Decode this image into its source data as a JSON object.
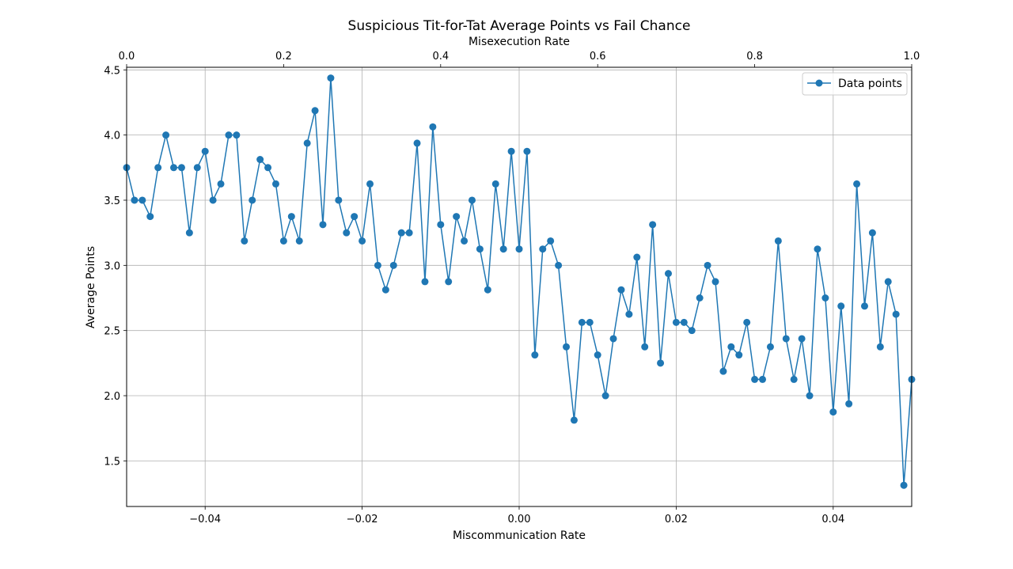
{
  "chart_data": {
    "type": "line",
    "title": "Suspicious Tit-for-Tat Average Points vs Fail Chance",
    "xlabel": "Miscommunication Rate",
    "ylabel": "Average Points",
    "top_xlabel": "Misexecution Rate",
    "xlim": [
      -0.05,
      0.05
    ],
    "ylim": [
      1.15,
      4.52
    ],
    "top_xlim": [
      0.0,
      1.0
    ],
    "x_ticks": [
      -0.04,
      -0.02,
      0.0,
      0.02,
      0.04
    ],
    "x_tick_labels": [
      "−0.04",
      "−0.02",
      "0.00",
      "0.02",
      "0.04"
    ],
    "y_ticks": [
      1.5,
      2.0,
      2.5,
      3.0,
      3.5,
      4.0,
      4.5
    ],
    "y_tick_labels": [
      "1.5",
      "2.0",
      "2.5",
      "3.0",
      "3.5",
      "4.0",
      "4.5"
    ],
    "top_x_ticks": [
      0.0,
      0.2,
      0.4,
      0.6,
      0.8,
      1.0
    ],
    "top_x_tick_labels": [
      "0.0",
      "0.2",
      "0.4",
      "0.6",
      "0.8",
      "1.0"
    ],
    "grid": true,
    "legend_position": "top-right",
    "series": [
      {
        "name": "Data points",
        "color": "#1f77b4",
        "x": [
          -0.05,
          -0.049,
          -0.048,
          -0.047,
          -0.046,
          -0.045,
          -0.044,
          -0.043,
          -0.042,
          -0.041,
          -0.04,
          -0.039,
          -0.038,
          -0.037,
          -0.036,
          -0.035,
          -0.034,
          -0.033,
          -0.032,
          -0.031,
          -0.03,
          -0.029,
          -0.028,
          -0.027,
          -0.026,
          -0.025,
          -0.024,
          -0.023,
          -0.022,
          -0.021,
          -0.02,
          -0.019,
          -0.018,
          -0.017,
          -0.016,
          -0.015,
          -0.014,
          -0.013,
          -0.012,
          -0.011,
          -0.01,
          -0.009,
          -0.008,
          -0.007,
          -0.006,
          -0.005,
          -0.004,
          -0.003,
          -0.002,
          -0.001,
          0.0,
          0.001,
          0.002,
          0.003,
          0.004,
          0.005,
          0.006,
          0.007,
          0.008,
          0.009,
          0.01,
          0.011,
          0.012,
          0.013,
          0.014,
          0.015,
          0.016,
          0.017,
          0.018,
          0.019,
          0.02,
          0.021,
          0.022,
          0.023,
          0.024,
          0.025,
          0.026,
          0.027,
          0.028,
          0.029,
          0.03,
          0.031,
          0.032,
          0.033,
          0.034,
          0.035,
          0.036,
          0.037,
          0.038,
          0.039,
          0.04,
          0.041,
          0.042,
          0.043,
          0.044,
          0.045,
          0.046,
          0.047,
          0.048,
          0.049,
          0.05
        ],
        "y": [
          3.75,
          3.5,
          3.5,
          3.375,
          3.75,
          4.0,
          3.75,
          3.75,
          3.25,
          3.75,
          3.875,
          3.5,
          3.625,
          4.0,
          4.0,
          3.1875,
          3.5,
          3.8125,
          3.75,
          3.625,
          3.1875,
          3.375,
          3.1875,
          3.9375,
          4.1875,
          3.3125,
          4.4375,
          3.5,
          3.25,
          3.375,
          3.1875,
          3.625,
          3.0,
          2.8125,
          3.0,
          3.25,
          3.25,
          3.9375,
          2.875,
          4.0625,
          3.3125,
          2.875,
          3.375,
          3.1875,
          3.5,
          3.125,
          2.8125,
          3.625,
          3.125,
          3.875,
          3.125,
          3.875,
          2.3125,
          3.125,
          3.1875,
          3.0,
          2.375,
          1.8125,
          2.5625,
          2.5625,
          2.3125,
          2.0,
          2.4375,
          2.8125,
          2.625,
          3.0625,
          2.375,
          3.3125,
          2.25,
          2.9375,
          2.5625,
          2.5625,
          2.5,
          2.75,
          3.0,
          2.875,
          2.1875,
          2.375,
          2.3125,
          2.5625,
          2.125,
          2.125,
          2.375,
          3.1875,
          2.4375,
          2.125,
          2.4375,
          2.0,
          3.125,
          2.75,
          1.875,
          2.6875,
          1.9375,
          3.625,
          2.6875,
          3.25,
          2.375,
          2.875,
          2.625,
          1.3125,
          2.125
        ]
      }
    ]
  }
}
